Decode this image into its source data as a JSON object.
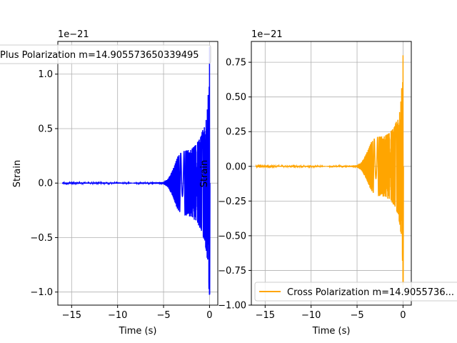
{
  "chart_data": [
    {
      "type": "line",
      "xlabel": "Time (s)",
      "ylabel": "Strain",
      "offset_text": "1e−21",
      "xlim": [
        -16.5,
        0.9
      ],
      "ylim": [
        -1.12e-21,
        1.3e-21
      ],
      "xticks": [
        -15,
        -10,
        -5,
        0
      ],
      "xtick_labels": [
        "−15",
        "−10",
        "−5",
        "0"
      ],
      "yticks": [
        -1e-21,
        -5e-22,
        0,
        5e-22,
        1e-21
      ],
      "ytick_labels": [
        "−1.0",
        "−0.5",
        "0.0",
        "0.5",
        "1.0"
      ],
      "grid": true,
      "legend": "top",
      "series": [
        {
          "name": "Plus Polarization m=14.905573650339495",
          "color": "#0000ff",
          "envelope": [
            [
              -16.0,
              5e-24
            ],
            [
              -10.0,
              5e-24
            ],
            [
              -6.0,
              6e-24
            ],
            [
              -5.0,
              1e-23
            ],
            [
              -4.5,
              4e-23
            ],
            [
              -4.0,
              1.2e-22
            ],
            [
              -3.5,
              2.4e-22
            ],
            [
              -3.0,
              2.9e-22
            ],
            [
              -2.0,
              3.1e-22
            ],
            [
              -1.5,
              3.5e-22
            ],
            [
              -1.0,
              4.2e-22
            ],
            [
              -0.5,
              5.5e-22
            ],
            [
              -0.2,
              7.2e-22
            ],
            [
              -0.05,
              1e-21
            ],
            [
              0.0,
              1.25e-21
            ]
          ],
          "min": -1.02e-21,
          "max": 1.25e-21
        }
      ]
    },
    {
      "type": "line",
      "xlabel": "Time (s)",
      "ylabel": "Strain",
      "offset_text": "1e−21",
      "xlim": [
        -16.5,
        0.9
      ],
      "ylim": [
        -1e-21,
        9e-22
      ],
      "xticks": [
        -15,
        -10,
        -5,
        0
      ],
      "xtick_labels": [
        "−15",
        "−10",
        "−5",
        "0"
      ],
      "yticks": [
        -1e-21,
        -7.5e-22,
        -5e-22,
        -2.5e-22,
        0,
        2.5e-22,
        5e-22,
        7.5e-22
      ],
      "ytick_labels": [
        "−1.00",
        "−0.75",
        "−0.50",
        "−0.25",
        "0.00",
        "0.25",
        "0.50",
        "0.75"
      ],
      "grid": true,
      "legend": "lower right",
      "series": [
        {
          "name": "Cross Polarization m=14.9055736...",
          "color": "#ffa500",
          "envelope": [
            [
              -16.0,
              3e-24
            ],
            [
              -10.0,
              3e-24
            ],
            [
              -6.0,
              4e-24
            ],
            [
              -5.0,
              8e-24
            ],
            [
              -4.5,
              3e-23
            ],
            [
              -4.0,
              9e-23
            ],
            [
              -3.5,
              1.7e-22
            ],
            [
              -3.0,
              2.1e-22
            ],
            [
              -2.0,
              2.2e-22
            ],
            [
              -1.5,
              2.4e-22
            ],
            [
              -1.0,
              2.8e-22
            ],
            [
              -0.5,
              3.6e-22
            ],
            [
              -0.2,
              5e-22
            ],
            [
              -0.05,
              7e-22
            ],
            [
              0.0,
              8e-22
            ]
          ],
          "min": -8.5e-22,
          "max": 8e-22
        }
      ]
    }
  ]
}
